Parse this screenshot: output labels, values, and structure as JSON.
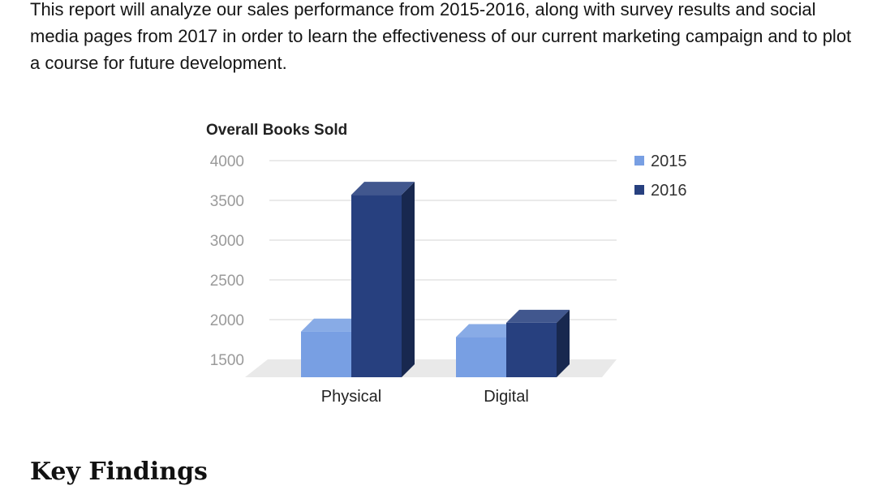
{
  "document": {
    "intro_paragraph": "This report will analyze our sales performance from 2015-2016, along with survey results and social media pages from 2017 in order to learn the effectiveness of our current marketing campaign and to plot a course for future development.",
    "section_heading": "Key Findings"
  },
  "chart_data": {
    "type": "bar",
    "style": "3d-column",
    "title": "Overall Books Sold",
    "xlabel": "",
    "ylabel": "",
    "categories": [
      "Physical",
      "Digital"
    ],
    "series": [
      {
        "name": "2015",
        "values": [
          1850,
          1780
        ],
        "color": "#789FE3"
      },
      {
        "name": "2016",
        "values": [
          3570,
          1960
        ],
        "color": "#27407F"
      }
    ],
    "yticks": [
      "4000",
      "3500",
      "3000",
      "2500",
      "2000",
      "1500"
    ],
    "ylim": [
      1500,
      4000
    ],
    "grid": true,
    "legend_position": "top-right"
  }
}
